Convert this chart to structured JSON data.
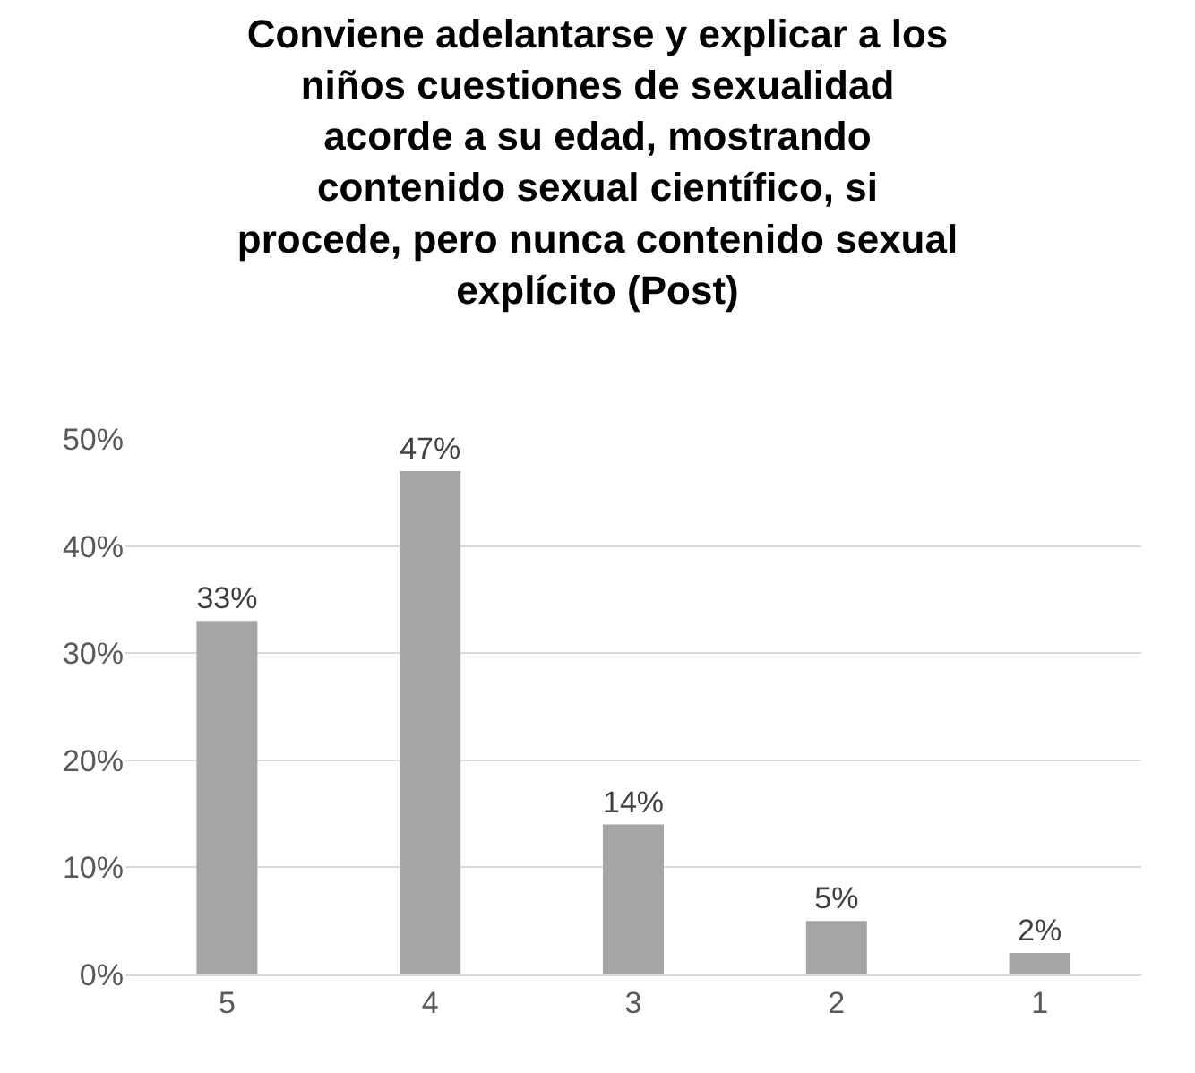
{
  "chart_data": {
    "type": "bar",
    "title": "Conviene adelantarse y explicar a los\nniños cuestiones de sexualidad\nacorde a su edad, mostrando\ncontenido sexual científico, si\nprocede, pero nunca contenido sexual\nexplícito (Post)",
    "categories": [
      "5",
      "4",
      "3",
      "2",
      "1"
    ],
    "values": [
      33,
      47,
      14,
      5,
      2
    ],
    "value_labels": [
      "33%",
      "47%",
      "14%",
      "5%",
      "2%"
    ],
    "color": "#a5a5a5",
    "ylim": [
      0,
      50
    ],
    "yticks": [
      {
        "value": 0,
        "label": "0%"
      },
      {
        "value": 10,
        "label": "10%"
      },
      {
        "value": 20,
        "label": "20%"
      },
      {
        "value": 30,
        "label": "30%"
      },
      {
        "value": 40,
        "label": "40%"
      },
      {
        "value": 50,
        "label": "50%"
      }
    ],
    "grid": "y",
    "legend": false
  }
}
